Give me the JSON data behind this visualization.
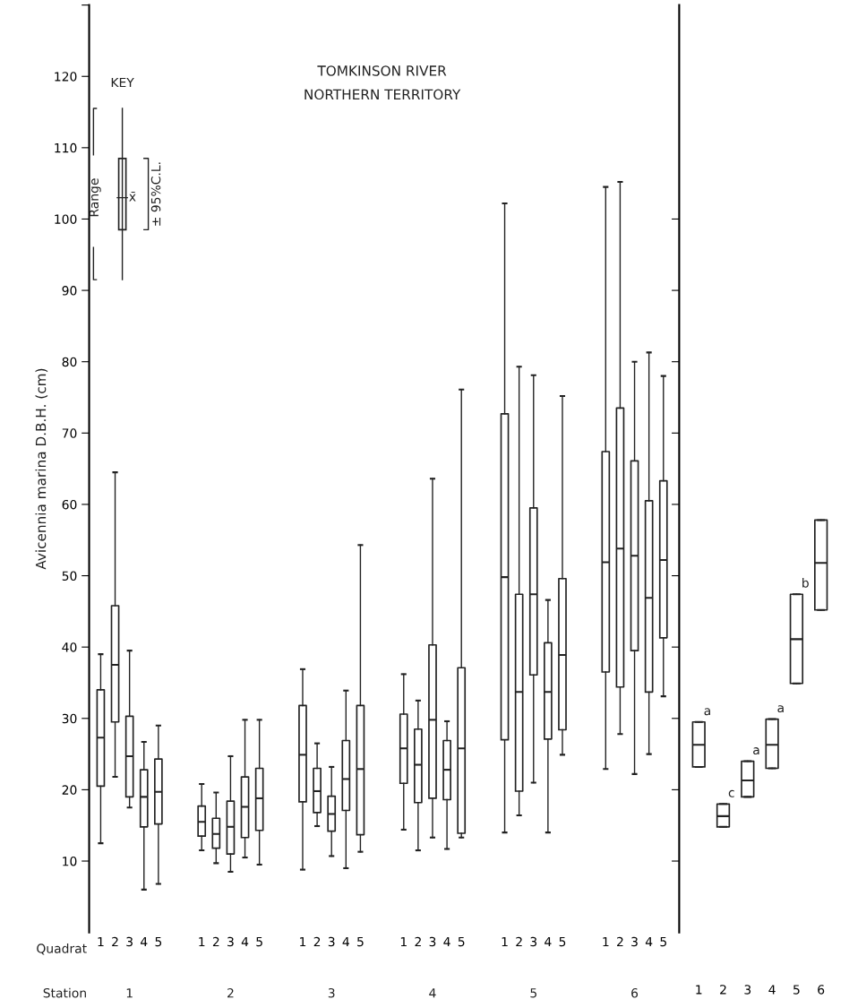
{
  "chart_data": [
    {
      "type": "box",
      "title": "TOMKINSON RIVER\nNORTHERN TERRITORY",
      "ylabel": "Avicennia marina D.B.H. (cm)",
      "categories": [
        "1",
        "2",
        "3",
        "4",
        "5",
        null,
        null,
        "1",
        "2",
        "3",
        "4",
        "5",
        null,
        null,
        "1",
        "2",
        "3",
        "4",
        "5",
        null,
        null,
        "1",
        "2",
        "3",
        "4",
        "5",
        null,
        null,
        "1",
        "2",
        "3",
        "4",
        "5",
        null,
        null,
        "1",
        "2",
        "3",
        "4",
        "5"
      ],
      "boxes": [
        {
          "low": 12.5,
          "q1": 20.5,
          "median": 27.3,
          "q3": 34,
          "high": 39
        },
        {
          "low": 21.8,
          "q1": 29.5,
          "median": 37.5,
          "q3": 45.8,
          "high": 64.5
        },
        {
          "low": 17.5,
          "q1": 19,
          "median": 24.7,
          "q3": 30.3,
          "high": 39.5
        },
        {
          "low": 6,
          "q1": 14.8,
          "median": 19,
          "q3": 22.8,
          "high": 26.7
        },
        {
          "low": 6.8,
          "q1": 15.2,
          "median": 19.7,
          "q3": 24.3,
          "high": 29
        },
        null,
        null,
        {
          "low": 11.5,
          "q1": 13.5,
          "median": 15.5,
          "q3": 17.7,
          "high": 20.8
        },
        {
          "low": 9.7,
          "q1": 11.8,
          "median": 13.8,
          "q3": 16,
          "high": 19.6
        },
        {
          "low": 8.5,
          "q1": 11,
          "median": 14.8,
          "q3": 18.4,
          "high": 24.7
        },
        {
          "low": 10.5,
          "q1": 13.3,
          "median": 17.6,
          "q3": 21.8,
          "high": 29.8
        },
        {
          "low": 9.5,
          "q1": 14.3,
          "median": 18.8,
          "q3": 23,
          "high": 29.8
        },
        null,
        null,
        {
          "low": 8.8,
          "q1": 18.3,
          "median": 24.9,
          "q3": 31.8,
          "high": 36.9
        },
        {
          "low": 14.9,
          "q1": 16.8,
          "median": 19.8,
          "q3": 23,
          "high": 26.5
        },
        {
          "low": 10.7,
          "q1": 14.2,
          "median": 16.6,
          "q3": 19.1,
          "high": 23.2
        },
        {
          "low": 9,
          "q1": 17.1,
          "median": 21.5,
          "q3": 26.9,
          "high": 33.9
        },
        {
          "low": 11.3,
          "q1": 13.7,
          "median": 22.9,
          "q3": 31.8,
          "high": 54.3
        },
        null,
        null,
        {
          "low": 14.4,
          "q1": 20.9,
          "median": 25.8,
          "q3": 30.6,
          "high": 36.2
        },
        {
          "low": 11.5,
          "q1": 18.2,
          "median": 23.5,
          "q3": 28.5,
          "high": 32.5
        },
        {
          "low": 13.3,
          "q1": 18.8,
          "median": 29.8,
          "q3": 40.3,
          "high": 63.6
        },
        {
          "low": 11.7,
          "q1": 18.6,
          "median": 22.8,
          "q3": 26.9,
          "high": 29.6
        },
        {
          "low": 13.3,
          "q1": 13.9,
          "median": 25.8,
          "q3": 37.1,
          "high": 76.1
        },
        null,
        null,
        {
          "low": 14,
          "q1": 27,
          "median": 49.8,
          "q3": 72.7,
          "high": 102.2
        },
        {
          "low": 16.4,
          "q1": 19.8,
          "median": 33.7,
          "q3": 47.4,
          "high": 79.3
        },
        {
          "low": 21,
          "q1": 36.1,
          "median": 47.4,
          "q3": 59.5,
          "high": 78.1
        },
        {
          "low": 14,
          "q1": 27.1,
          "median": 33.7,
          "q3": 40.6,
          "high": 46.6
        },
        {
          "low": 24.9,
          "q1": 28.4,
          "median": 38.9,
          "q3": 49.6,
          "high": 75.2
        },
        null,
        null,
        {
          "low": 22.9,
          "q1": 36.5,
          "median": 51.9,
          "q3": 67.4,
          "high": 104.5
        },
        {
          "low": 27.8,
          "q1": 34.4,
          "median": 53.8,
          "q3": 73.5,
          "high": 105.2
        },
        {
          "low": 22.2,
          "q1": 39.5,
          "median": 52.8,
          "q3": 66.1,
          "high": 80
        },
        {
          "low": 25,
          "q1": 33.7,
          "median": 46.9,
          "q3": 60.5,
          "high": 81.3
        },
        {
          "low": 33.1,
          "q1": 41.3,
          "median": 52.2,
          "q3": 63.3,
          "high": 78
        }
      ],
      "ylim": [
        0,
        130
      ],
      "yticks": [
        10,
        20,
        30,
        40,
        50,
        60,
        70,
        80,
        90,
        100,
        110,
        120,
        {
          "value": 130,
          "label": null
        }
      ],
      "grid": false,
      "annotations": [
        "KEY",
        "Range",
        "x̄",
        "± 95%C.L.",
        "Quadrat",
        "Station",
        "1",
        "2",
        "3",
        "4",
        "5",
        "6"
      ]
    },
    {
      "type": "box",
      "categories": [
        "1",
        "2",
        "3",
        "4",
        "5",
        "6"
      ],
      "boxes": [
        {
          "low": 23.2,
          "q1": 23.2,
          "median": 26.3,
          "q3": 29.5,
          "high": 29.5
        },
        {
          "low": 14.8,
          "q1": 14.8,
          "median": 16.3,
          "q3": 18,
          "high": 18
        },
        {
          "low": 19,
          "q1": 19,
          "median": 21.3,
          "q3": 24,
          "high": 24
        },
        {
          "low": 23,
          "q1": 23,
          "median": 26.3,
          "q3": 29.9,
          "high": 29.9
        },
        {
          "low": 34.9,
          "q1": 34.9,
          "median": 41.1,
          "q3": 47.4,
          "high": 47.4
        },
        {
          "low": 45.2,
          "q1": 45.2,
          "median": 51.8,
          "q3": 57.8,
          "high": 57.8
        }
      ],
      "ylim": [
        0,
        130
      ],
      "yticks": [
        {
          "value": 10,
          "label": null
        },
        {
          "value": 20,
          "label": null
        },
        {
          "value": 30,
          "label": null
        },
        {
          "value": 40,
          "label": null
        },
        {
          "value": 50,
          "label": null
        },
        {
          "value": 60,
          "label": null
        },
        {
          "value": 70,
          "label": null
        },
        {
          "value": 80,
          "label": null
        },
        {
          "value": 90,
          "label": null
        },
        {
          "value": 100,
          "label": null
        }
      ],
      "tick_labels": "x",
      "grid": false,
      "annotations": [
        {
          "text": "a",
          "x": "1",
          "y": 29.5
        },
        {
          "text": "c",
          "x": "2",
          "y": 18
        },
        {
          "text": "a",
          "x": "3",
          "y": 24
        },
        {
          "text": "a",
          "x": "4",
          "y": 29.9
        },
        {
          "text": "b",
          "x": "5",
          "y": 47.4
        }
      ]
    }
  ]
}
